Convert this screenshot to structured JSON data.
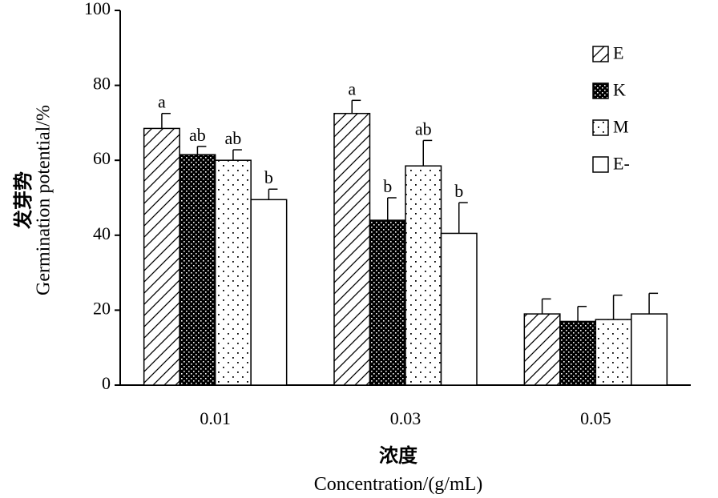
{
  "chart_data": {
    "type": "bar",
    "categories": [
      "0.01",
      "0.03",
      "0.05"
    ],
    "series": [
      {
        "name": "E",
        "values": [
          68.5,
          72.5,
          19.0
        ],
        "errors": [
          4.0,
          3.5,
          4.0
        ],
        "letters": [
          "a",
          "a",
          ""
        ]
      },
      {
        "name": "K",
        "values": [
          61.5,
          44.0,
          17.0
        ],
        "errors": [
          2.2,
          6.0,
          4.0
        ],
        "letters": [
          "ab",
          "b",
          ""
        ]
      },
      {
        "name": "M",
        "values": [
          60.0,
          58.5,
          17.5
        ],
        "errors": [
          2.8,
          6.8,
          6.5
        ],
        "letters": [
          "ab",
          "ab",
          ""
        ]
      },
      {
        "name": "E-",
        "values": [
          49.5,
          40.5,
          19.0
        ],
        "errors": [
          2.8,
          8.2,
          5.5
        ],
        "letters": [
          "b",
          "b",
          ""
        ]
      }
    ],
    "ylim": [
      0,
      100
    ],
    "yticks": [
      "0",
      "20",
      "40",
      "60",
      "80",
      "100"
    ],
    "xlabel_cn": "浓度",
    "xlabel": "Concentration/(g/mL)",
    "ylabel_cn": "发芽势",
    "ylabel": "Germination potential/%",
    "legend_position": "top-right",
    "grid": false
  }
}
